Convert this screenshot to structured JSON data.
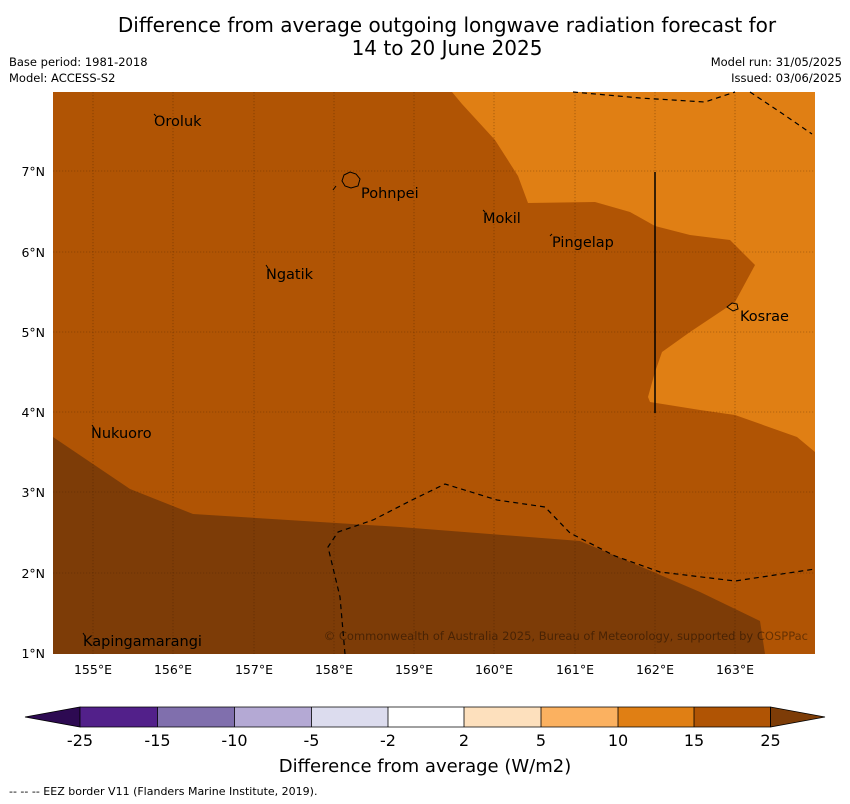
{
  "title": {
    "line1": "Difference from average outgoing longwave radiation forecast for",
    "line2": "14 to 20 June 2025"
  },
  "info_left": {
    "base_period": "Base period: 1981-2018",
    "model": "Model: ACCESS-S2"
  },
  "info_right": {
    "model_run": "Model run: 31/05/2025",
    "issued": "Issued: 03/06/2025"
  },
  "map": {
    "lat_labels": [
      "1°N",
      "2°N",
      "3°N",
      "4°N",
      "5°N",
      "6°N",
      "7°N"
    ],
    "lon_labels": [
      "155°E",
      "156°E",
      "157°E",
      "158°E",
      "159°E",
      "160°E",
      "161°E",
      "162°E",
      "163°E"
    ],
    "places": [
      {
        "name": "Oroluk",
        "lon": 155.75,
        "lat": 7.7
      },
      {
        "name": "Pohnpei",
        "lon": 158.3,
        "lat": 6.9
      },
      {
        "name": "Mokil",
        "lon": 159.8,
        "lat": 6.45
      },
      {
        "name": "Pingelap",
        "lon": 160.7,
        "lat": 6.2
      },
      {
        "name": "Ngatik",
        "lon": 157.15,
        "lat": 5.8
      },
      {
        "name": "Kosrae",
        "lon": 162.95,
        "lat": 5.35
      },
      {
        "name": "Nukuoro",
        "lon": 154.85,
        "lat": 3.85
      },
      {
        "name": "Kapingamarangi",
        "lon": 154.85,
        "lat": 1.25
      }
    ],
    "copyright": "© Commonwealth of Australia 2025, Bureau of Meteorology, supported by COSPPac",
    "region_colors": {
      "band_15_25": "#b05404",
      "band_10_15": "#e07f14",
      "above_25": "#7d3c07"
    }
  },
  "colorbar": {
    "ticks": [
      "-25",
      "-15",
      "-10",
      "-5",
      "-2",
      "2",
      "5",
      "10",
      "15",
      "25"
    ],
    "colors": [
      "#52208a",
      "#806fad",
      "#b4a9d4",
      "#dcdcee",
      "#ffffff",
      "#fde0bd",
      "#fbb160",
      "#e07f14",
      "#b05404"
    ],
    "under_color": "#2d0a52",
    "over_color": "#7d3c07",
    "label": "Difference from average (W/m2)"
  },
  "footer": "--  --  -- EEZ border V11 (Flanders Marine Institute, 2019)."
}
